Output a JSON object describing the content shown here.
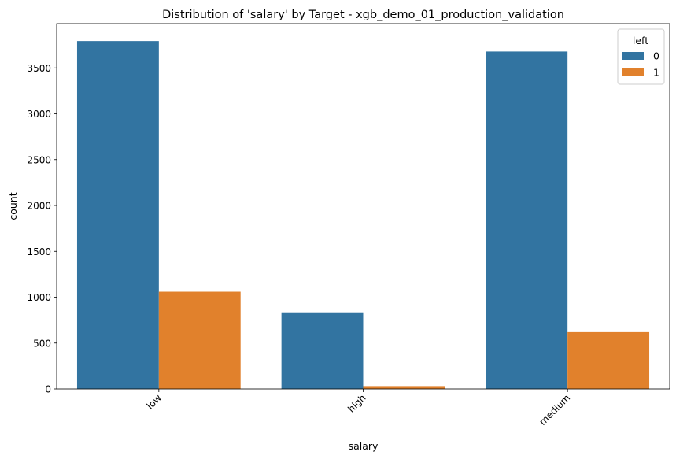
{
  "chart_data": {
    "type": "bar",
    "title": "Distribution of 'salary' by Target - xgb_demo_01_production_validation",
    "xlabel": "salary",
    "ylabel": "count",
    "categories": [
      "low",
      "high",
      "medium"
    ],
    "series": [
      {
        "name": "0",
        "color": "#3274a1",
        "values": [
          3793,
          835,
          3679
        ]
      },
      {
        "name": "1",
        "color": "#e1812c",
        "values": [
          1060,
          31,
          619
        ]
      }
    ],
    "yticks": [
      0,
      500,
      1000,
      1500,
      2000,
      2500,
      3000,
      3500
    ],
    "ylim": [
      0,
      3983
    ],
    "legend": {
      "title": "left",
      "position": "top-right"
    },
    "grid": false,
    "xtick_rotation": -45
  }
}
